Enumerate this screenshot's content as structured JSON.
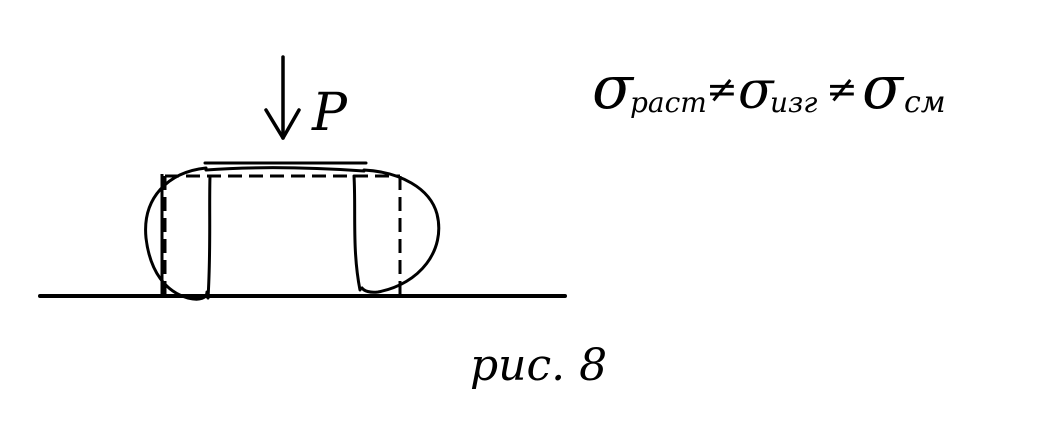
{
  "diagram": {
    "ink_color": "#000000",
    "background_color": "#ffffff",
    "load_label": "P",
    "figure_caption": "рис. 8",
    "stress_relation": {
      "sigma_symbol": "σ",
      "terms": [
        "раст",
        "изг",
        "см"
      ],
      "relation_symbol": "≠"
    }
  }
}
